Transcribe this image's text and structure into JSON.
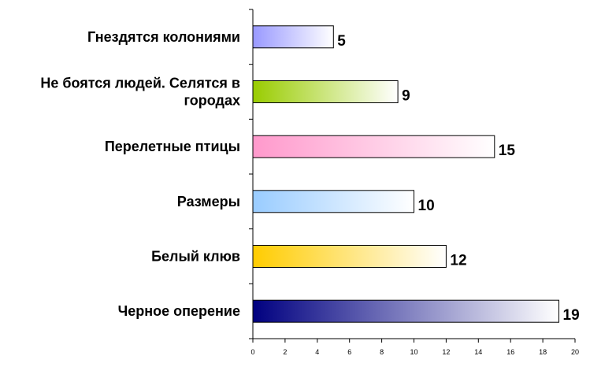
{
  "chart_data": {
    "type": "bar",
    "orientation": "horizontal",
    "title": "",
    "xlabel": "",
    "ylabel": "",
    "xlim": [
      0,
      20
    ],
    "x_ticks": [
      "0",
      "2",
      "4",
      "6",
      "8",
      "10",
      "12",
      "14",
      "16",
      "18",
      "20"
    ],
    "grid": false,
    "categories": [
      {
        "lines": [
          "Гнездятся колониями"
        ],
        "value": 5,
        "value_label": "5",
        "color": "#9999ff"
      },
      {
        "lines": [
          "Не боятся людей. Селятся в",
          "городах"
        ],
        "value": 9,
        "value_label": "9",
        "color": "#99cc00"
      },
      {
        "lines": [
          "Перелетные птицы"
        ],
        "value": 15,
        "value_label": "15",
        "color": "#ff99cc"
      },
      {
        "lines": [
          "Размеры"
        ],
        "value": 10,
        "value_label": "10",
        "color": "#99ccff"
      },
      {
        "lines": [
          "Белый клюв"
        ],
        "value": 12,
        "value_label": "12",
        "color": "#ffcc00"
      },
      {
        "lines": [
          "Черное оперение"
        ],
        "value": 19,
        "value_label": "19",
        "color": "#000080"
      }
    ]
  }
}
